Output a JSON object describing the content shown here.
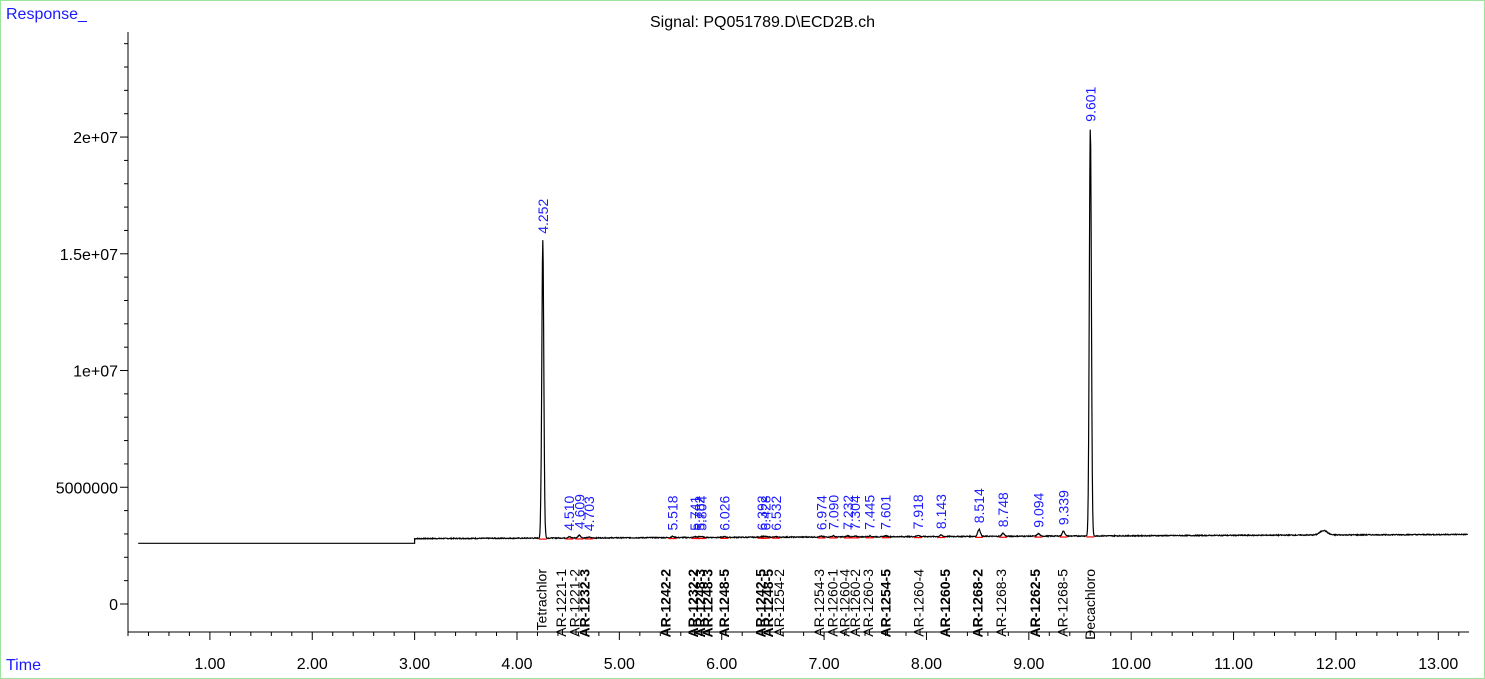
{
  "chart_data": {
    "type": "line",
    "title": "Signal: PQ051789.D\\ECD2B.ch",
    "ylabel": "Response_",
    "xlabel": "Time",
    "xlim": [
      0.2,
      13.3
    ],
    "ylim": [
      -1200000,
      24500000
    ],
    "x_ticks": [
      "1.00",
      "2.00",
      "3.00",
      "4.00",
      "5.00",
      "6.00",
      "7.00",
      "8.00",
      "9.00",
      "10.00",
      "11.00",
      "12.00",
      "13.00"
    ],
    "x_tick_values": [
      1,
      2,
      3,
      4,
      5,
      6,
      7,
      8,
      9,
      10,
      11,
      12,
      13
    ],
    "y_ticks": [
      "0",
      "5000000",
      "1e+07",
      "1.5e+07",
      "2e+07"
    ],
    "y_tick_values": [
      0,
      5000000,
      10000000,
      15000000,
      20000000
    ],
    "baseline": {
      "start_value": 2600000,
      "step_time": 3.0,
      "after_step_value": 2800000,
      "end_value": 2980000
    },
    "peaks": [
      {
        "rt": "4.252",
        "x": 4.252,
        "height": 15600000
      },
      {
        "rt": "4.510",
        "x": 4.51,
        "height": 2880000
      },
      {
        "rt": "4.609",
        "x": 4.609,
        "height": 2950000
      },
      {
        "rt": "4.703",
        "x": 4.703,
        "height": 2860000
      },
      {
        "rt": "5.518",
        "x": 5.518,
        "height": 2890000
      },
      {
        "rt": "5.741",
        "x": 5.741,
        "height": 2880000
      },
      {
        "rt": "5.782",
        "x": 5.782,
        "height": 2880000
      },
      {
        "rt": "5.804",
        "x": 5.804,
        "height": 2880000
      },
      {
        "rt": "6.026",
        "x": 6.026,
        "height": 2880000
      },
      {
        "rt": "6.392",
        "x": 6.392,
        "height": 2890000
      },
      {
        "rt": "6.428",
        "x": 6.428,
        "height": 2890000
      },
      {
        "rt": "6.532",
        "x": 6.532,
        "height": 2880000
      },
      {
        "rt": "6.974",
        "x": 6.974,
        "height": 2900000
      },
      {
        "rt": "7.090",
        "x": 7.09,
        "height": 2920000
      },
      {
        "rt": "7.232",
        "x": 7.232,
        "height": 2920000
      },
      {
        "rt": "7.304",
        "x": 7.304,
        "height": 2900000
      },
      {
        "rt": "7.445",
        "x": 7.445,
        "height": 2920000
      },
      {
        "rt": "7.601",
        "x": 7.601,
        "height": 2920000
      },
      {
        "rt": "7.918",
        "x": 7.918,
        "height": 2940000
      },
      {
        "rt": "8.143",
        "x": 8.143,
        "height": 2950000
      },
      {
        "rt": "8.514",
        "x": 8.514,
        "height": 3200000
      },
      {
        "rt": "8.748",
        "x": 8.748,
        "height": 3030000
      },
      {
        "rt": "9.094",
        "x": 9.094,
        "height": 3010000
      },
      {
        "rt": "9.339",
        "x": 9.339,
        "height": 3120000
      },
      {
        "rt": "9.601",
        "x": 9.601,
        "height": 20400000
      },
      {
        "rt": "",
        "x": 11.88,
        "height": 3150000
      }
    ],
    "compound_labels": [
      {
        "x": 4.24,
        "text": "Tetrachlor",
        "bold": false
      },
      {
        "x": 4.43,
        "text": "AR-1221-1",
        "bold": false
      },
      {
        "x": 4.56,
        "text": "AR-1221-2",
        "bold": false
      },
      {
        "x": 4.66,
        "text": "AR-1232-3",
        "bold": true
      },
      {
        "x": 5.45,
        "text": "AR-1242-2",
        "bold": true
      },
      {
        "x": 5.72,
        "text": "AR-1232-2",
        "bold": true
      },
      {
        "x": 5.79,
        "text": "AR-1248-3",
        "bold": true
      },
      {
        "x": 5.86,
        "text": "AR-1248-3",
        "bold": true
      },
      {
        "x": 6.02,
        "text": "AR-1248-5",
        "bold": true
      },
      {
        "x": 6.38,
        "text": "AR-1242-5",
        "bold": true
      },
      {
        "x": 6.45,
        "text": "AR-1248-5",
        "bold": true
      },
      {
        "x": 6.56,
        "text": "AR-1254-2",
        "bold": false
      },
      {
        "x": 6.95,
        "text": "AR-1254-3",
        "bold": false
      },
      {
        "x": 7.08,
        "text": "AR-1260-1",
        "bold": false
      },
      {
        "x": 7.2,
        "text": "AR-1260-4",
        "bold": false
      },
      {
        "x": 7.3,
        "text": "AR-1260-2",
        "bold": false
      },
      {
        "x": 7.43,
        "text": "AR-1260-3",
        "bold": false
      },
      {
        "x": 7.6,
        "text": "AR-1254-5",
        "bold": true
      },
      {
        "x": 7.92,
        "text": "AR-1260-4",
        "bold": false
      },
      {
        "x": 8.18,
        "text": "AR-1260-5",
        "bold": true
      },
      {
        "x": 8.5,
        "text": "AR-1268-2",
        "bold": true
      },
      {
        "x": 8.73,
        "text": "AR-1268-3",
        "bold": false
      },
      {
        "x": 9.06,
        "text": "AR-1262-5",
        "bold": true
      },
      {
        "x": 9.33,
        "text": "AR-1268-5",
        "bold": false
      },
      {
        "x": 9.6,
        "text": "Decachloro",
        "bold": false
      }
    ],
    "grid": false,
    "legend": "none",
    "colors": {
      "trace": "#000000",
      "peak_label": "#1a1aff",
      "axis_label": "#1a1aff",
      "baseline_mark": "#ff0000",
      "frame": "#9be69b"
    }
  }
}
